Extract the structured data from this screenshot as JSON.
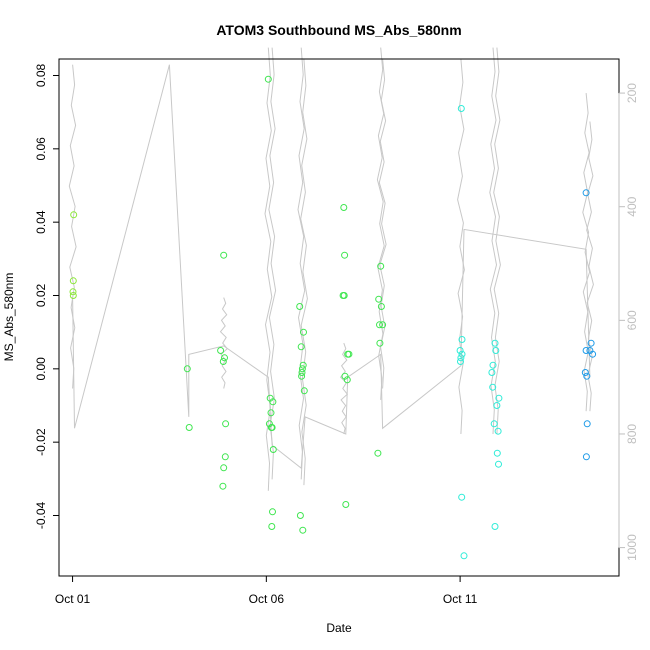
{
  "chart_data": {
    "type": "scatter",
    "title": "ATOM3 Southbound MS_Abs_580nm",
    "xlabel": "Date",
    "ylabel": "MS_Abs_580nm",
    "x_ticks": [
      {
        "label": "Oct 01",
        "day": 1
      },
      {
        "label": "Oct 06",
        "day": 6
      },
      {
        "label": "Oct 11",
        "day": 11
      }
    ],
    "xlim": [
      0.65,
      15.1
    ],
    "ylim": [
      -0.0565,
      0.0845
    ],
    "y_ticks": [
      "-0.04",
      "-0.02",
      "0.00",
      "0.02",
      "0.04",
      "0.06",
      "0.08"
    ],
    "y_tick_values": [
      -0.04,
      -0.02,
      0,
      0.02,
      0.04,
      0.06,
      0.08
    ],
    "y2_ticks": [
      "200",
      "400",
      "600",
      "800",
      "1000"
    ],
    "y2_tick_values": [
      200,
      400,
      600,
      800,
      1000
    ],
    "y2lim": [
      1050,
      140
    ],
    "grid": false,
    "colors": {
      "point_scale": [
        "#8ce83a",
        "#3fe650",
        "#2fecd8",
        "#1f9be8"
      ],
      "line": "#c8c8c8",
      "axis": "#000000",
      "axis2": "#bfbfbf"
    },
    "points": [
      {
        "x": 1.03,
        "y": 0.042
      },
      {
        "x": 1.02,
        "y": 0.024
      },
      {
        "x": 1.01,
        "y": 0.021
      },
      {
        "x": 1.02,
        "y": 0.02
      },
      {
        "x": 3.96,
        "y": 0.0
      },
      {
        "x": 4.01,
        "y": -0.016
      },
      {
        "x": 4.82,
        "y": 0.005
      },
      {
        "x": 4.9,
        "y": 0.031
      },
      {
        "x": 4.92,
        "y": 0.003
      },
      {
        "x": 4.89,
        "y": 0.002
      },
      {
        "x": 4.95,
        "y": -0.015
      },
      {
        "x": 4.94,
        "y": -0.024
      },
      {
        "x": 4.9,
        "y": -0.027
      },
      {
        "x": 4.88,
        "y": -0.032
      },
      {
        "x": 6.05,
        "y": 0.079
      },
      {
        "x": 6.1,
        "y": -0.008
      },
      {
        "x": 6.17,
        "y": -0.009
      },
      {
        "x": 6.12,
        "y": -0.012
      },
      {
        "x": 6.08,
        "y": -0.015
      },
      {
        "x": 6.13,
        "y": -0.016
      },
      {
        "x": 6.15,
        "y": -0.016
      },
      {
        "x": 6.18,
        "y": -0.022
      },
      {
        "x": 6.16,
        "y": -0.039
      },
      {
        "x": 6.14,
        "y": -0.043
      },
      {
        "x": 6.86,
        "y": 0.017
      },
      {
        "x": 6.96,
        "y": 0.01
      },
      {
        "x": 6.9,
        "y": 0.006
      },
      {
        "x": 6.95,
        "y": 0.001
      },
      {
        "x": 6.93,
        "y": 0.0
      },
      {
        "x": 6.92,
        "y": -0.001
      },
      {
        "x": 6.91,
        "y": -0.002
      },
      {
        "x": 6.98,
        "y": -0.006
      },
      {
        "x": 6.88,
        "y": -0.04
      },
      {
        "x": 6.94,
        "y": -0.044
      },
      {
        "x": 8.0,
        "y": 0.044
      },
      {
        "x": 8.02,
        "y": 0.031
      },
      {
        "x": 7.98,
        "y": 0.02
      },
      {
        "x": 8.01,
        "y": 0.02
      },
      {
        "x": 8.1,
        "y": 0.004
      },
      {
        "x": 8.13,
        "y": 0.004
      },
      {
        "x": 8.03,
        "y": -0.002
      },
      {
        "x": 8.09,
        "y": -0.003
      },
      {
        "x": 8.05,
        "y": -0.037
      },
      {
        "x": 8.95,
        "y": 0.028
      },
      {
        "x": 8.9,
        "y": 0.019
      },
      {
        "x": 8.97,
        "y": 0.017
      },
      {
        "x": 8.92,
        "y": 0.012
      },
      {
        "x": 9.0,
        "y": 0.012
      },
      {
        "x": 8.93,
        "y": 0.007
      },
      {
        "x": 8.88,
        "y": -0.023
      },
      {
        "x": 11.03,
        "y": 0.071
      },
      {
        "x": 11.05,
        "y": 0.008
      },
      {
        "x": 11.0,
        "y": 0.005
      },
      {
        "x": 11.05,
        "y": 0.004
      },
      {
        "x": 11.02,
        "y": 0.003
      },
      {
        "x": 11.01,
        "y": 0.002
      },
      {
        "x": 11.04,
        "y": -0.035
      },
      {
        "x": 11.1,
        "y": -0.051
      },
      {
        "x": 11.9,
        "y": 0.007
      },
      {
        "x": 11.92,
        "y": 0.005
      },
      {
        "x": 11.85,
        "y": 0.001
      },
      {
        "x": 11.82,
        "y": -0.001
      },
      {
        "x": 11.84,
        "y": -0.005
      },
      {
        "x": 12.0,
        "y": -0.008
      },
      {
        "x": 11.95,
        "y": -0.01
      },
      {
        "x": 11.88,
        "y": -0.015
      },
      {
        "x": 11.98,
        "y": -0.017
      },
      {
        "x": 11.96,
        "y": -0.023
      },
      {
        "x": 11.99,
        "y": -0.026
      },
      {
        "x": 11.9,
        "y": -0.043
      },
      {
        "x": 14.25,
        "y": 0.048
      },
      {
        "x": 14.38,
        "y": 0.007
      },
      {
        "x": 14.25,
        "y": 0.005
      },
      {
        "x": 14.35,
        "y": 0.005
      },
      {
        "x": 14.42,
        "y": 0.004
      },
      {
        "x": 14.23,
        "y": -0.001
      },
      {
        "x": 14.27,
        "y": -0.002
      },
      {
        "x": 14.28,
        "y": -0.015
      },
      {
        "x": 14.26,
        "y": -0.024
      }
    ]
  }
}
